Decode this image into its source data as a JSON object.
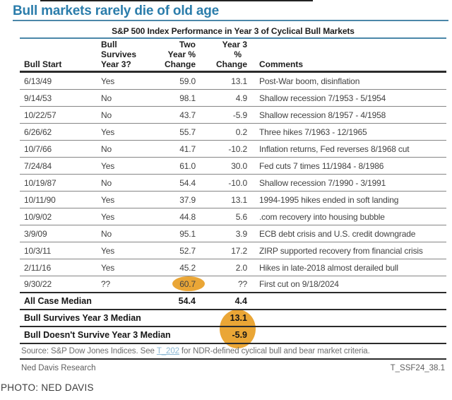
{
  "page": {
    "photo_credit": "PHOTO: NED DAVIS"
  },
  "colors": {
    "title_blue": "#2b7dab",
    "rule_blue": "#4b87a9",
    "highlight_orange": "#eaa636",
    "link_blue": "#8cb8d4"
  },
  "chart_data": {
    "type": "table",
    "title": "Bull markets rarely die of old age",
    "subtitle": "S&P 500 Index Performance in Year 3 of Cyclical Bull Markets",
    "columns": [
      "Bull Start",
      "Bull Survives Year 3?",
      "Two Year % Change",
      "Year 3 % Change",
      "Comments"
    ],
    "header": {
      "col1": "Bull Start",
      "col2_l1": "Bull",
      "col2_l2": "Survives",
      "col2_l3": "Year 3?",
      "col3_l1": "Two",
      "col3_l2": "Year %",
      "col3_l3": "Change",
      "col4_l1": "Year 3",
      "col4_l2": "%",
      "col4_l3": "Change",
      "col5": "Comments"
    },
    "rows": [
      {
        "date": "6/13/49",
        "survives": "Yes",
        "two_year": "59.0",
        "year3": "13.1",
        "comment": "Post-War boom, disinflation"
      },
      {
        "date": "9/14/53",
        "survives": "No",
        "two_year": "98.1",
        "year3": "4.9",
        "comment": "Shallow recession 7/1953 - 5/1954"
      },
      {
        "date": "10/22/57",
        "survives": "No",
        "two_year": "43.7",
        "year3": "-5.9",
        "comment": "Shallow recession 8/1957 - 4/1958"
      },
      {
        "date": "6/26/62",
        "survives": "Yes",
        "two_year": "55.7",
        "year3": "0.2",
        "comment": "Three hikes 7/1963 - 12/1965"
      },
      {
        "date": "10/7/66",
        "survives": "No",
        "two_year": "41.7",
        "year3": "-10.2",
        "comment": "Inflation returns, Fed reverses 8/1968 cut"
      },
      {
        "date": "7/24/84",
        "survives": "Yes",
        "two_year": "61.0",
        "year3": "30.0",
        "comment": "Fed cuts 7 times 11/1984 - 8/1986"
      },
      {
        "date": "10/19/87",
        "survives": "No",
        "two_year": "54.4",
        "year3": "-10.0",
        "comment": "Shallow recession 7/1990 - 3/1991"
      },
      {
        "date": "10/11/90",
        "survives": "Yes",
        "two_year": "37.9",
        "year3": "13.1",
        "comment": "1994-1995 hikes ended in soft landing"
      },
      {
        "date": "10/9/02",
        "survives": "Yes",
        "two_year": "44.8",
        "year3": "5.6",
        "comment": ".com recovery into housing bubble"
      },
      {
        "date": "3/9/09",
        "survives": "No",
        "two_year": "95.1",
        "year3": "3.9",
        "comment": "ECB debt crisis and U.S. credit downgrade"
      },
      {
        "date": "10/3/11",
        "survives": "Yes",
        "two_year": "52.7",
        "year3": "17.2",
        "comment": "ZIRP supported recovery from financial crisis"
      },
      {
        "date": "2/11/16",
        "survives": "Yes",
        "two_year": "45.2",
        "year3": "2.0",
        "comment": "Hikes in late-2018 almost derailed bull"
      },
      {
        "date": "9/30/22",
        "survives": "??",
        "two_year": "60.7",
        "year3": "??",
        "comment": "First cut on 9/18/2024"
      }
    ],
    "medians": [
      {
        "label": "All Case Median",
        "two_year": "54.4",
        "year3": "4.4"
      },
      {
        "label": "Bull Survives Year 3 Median",
        "two_year": "",
        "year3": "13.1"
      },
      {
        "label": "Bull Doesn't Survive Year 3 Median",
        "two_year": "",
        "year3": "-5.9"
      }
    ],
    "highlights": [
      {
        "shape": "ellipse",
        "around": "60.7",
        "row": "9/30/22",
        "column": "Two Year % Change"
      },
      {
        "shape": "circle",
        "around": "13.1 and -5.9",
        "rows": "survive / doesn't survive medians",
        "column": "Year 3 % Change"
      }
    ],
    "source": {
      "prefix": "Source: S&P Dow Jones Indices. See",
      "link": "T_202",
      "suffix": "for NDR-defined cyclical bull and bear market criteria."
    },
    "footer_left": "Ned Davis Research",
    "footer_right": "T_SSF24_38.1"
  }
}
